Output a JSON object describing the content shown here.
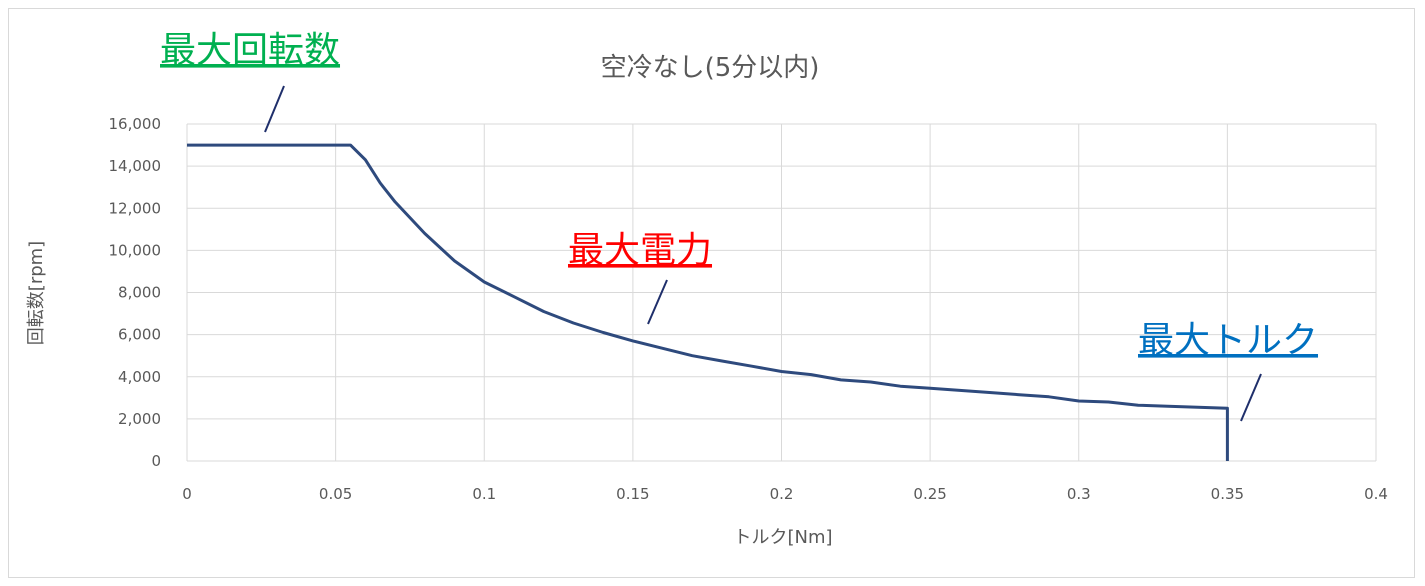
{
  "chart_data": {
    "type": "line",
    "title": "空冷なし(5分以内)",
    "xlabel": "トルク[Nm]",
    "ylabel": "回転数[rpm]",
    "xlim": [
      0,
      0.4
    ],
    "ylim": [
      0,
      16000
    ],
    "x_ticks": [
      "0",
      "0.05",
      "0.1",
      "0.15",
      "0.2",
      "0.25",
      "0.3",
      "0.35",
      "0.4"
    ],
    "y_ticks": [
      "0",
      "2,000",
      "4,000",
      "6,000",
      "8,000",
      "10,000",
      "12,000",
      "14,000",
      "16,000"
    ],
    "grid": true,
    "legend": "none",
    "series": [
      {
        "color": "#2e4a7d",
        "points": [
          [
            0,
            15000
          ],
          [
            0.055,
            15000
          ],
          [
            0.06,
            14300
          ],
          [
            0.065,
            13200
          ],
          [
            0.07,
            12300
          ],
          [
            0.08,
            10800
          ],
          [
            0.09,
            9500
          ],
          [
            0.1,
            8500
          ],
          [
            0.11,
            7800
          ],
          [
            0.12,
            7100
          ],
          [
            0.13,
            6550
          ],
          [
            0.14,
            6100
          ],
          [
            0.15,
            5700
          ],
          [
            0.16,
            5350
          ],
          [
            0.17,
            5000
          ],
          [
            0.18,
            4750
          ],
          [
            0.19,
            4500
          ],
          [
            0.2,
            4250
          ],
          [
            0.21,
            4100
          ],
          [
            0.22,
            3850
          ],
          [
            0.23,
            3750
          ],
          [
            0.24,
            3550
          ],
          [
            0.25,
            3450
          ],
          [
            0.26,
            3350
          ],
          [
            0.27,
            3250
          ],
          [
            0.28,
            3150
          ],
          [
            0.29,
            3050
          ],
          [
            0.3,
            2850
          ],
          [
            0.31,
            2800
          ],
          [
            0.32,
            2650
          ],
          [
            0.33,
            2600
          ],
          [
            0.34,
            2550
          ],
          [
            0.35,
            2500
          ],
          [
            0.35,
            0
          ]
        ]
      }
    ],
    "annotations": [
      {
        "text": "最大回転数",
        "color": "#00b050"
      },
      {
        "text": "最大電力",
        "color": "#ff0000"
      },
      {
        "text": "最大トルク",
        "color": "#0070c0"
      }
    ]
  }
}
